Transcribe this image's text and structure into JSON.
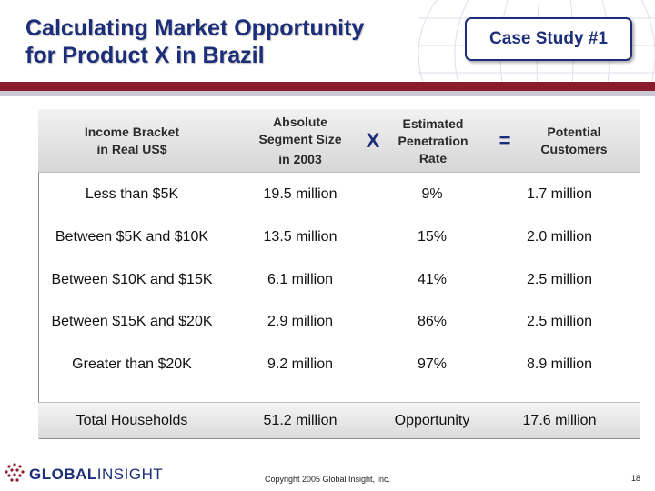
{
  "header": {
    "title_line1": "Calculating Market Opportunity",
    "title_line2": "for Product X in Brazil",
    "badge": "Case Study #1"
  },
  "table": {
    "columns": [
      {
        "line1": "Income Bracket",
        "line2": "in Real US$"
      },
      {
        "line1": "Absolute",
        "line2": "Segment Size",
        "line3": "in 2003"
      },
      {
        "line1": "Estimated",
        "line2": "Penetration",
        "line3": "Rate"
      },
      {
        "line1": "Potential",
        "line2": "Customers"
      }
    ],
    "operator_multiply": "X",
    "operator_equals": "=",
    "rows": [
      {
        "bracket": "Less than $5K",
        "segment": "19.5 million",
        "rate": "9%",
        "customers": "1.7 million"
      },
      {
        "bracket": "Between $5K and $10K",
        "segment": "13.5 million",
        "rate": "15%",
        "customers": "2.0 million"
      },
      {
        "bracket": "Between $10K and $15K",
        "segment": "6.1 million",
        "rate": "41%",
        "customers": "2.5 million"
      },
      {
        "bracket": "Between $15K and $20K",
        "segment": "2.9 million",
        "rate": "86%",
        "customers": "2.5 million"
      },
      {
        "bracket": "Greater than $20K",
        "segment": "9.2 million",
        "rate": "97%",
        "customers": "8.9 million"
      }
    ],
    "total": {
      "bracket": "Total Households",
      "segment": "51.2 million",
      "rate": "Opportunity",
      "customers": "17.6 million"
    }
  },
  "footer": {
    "logo_global": "GLOBAL",
    "logo_insight": "INSIGHT",
    "logo_icon": "globe-dots-icon",
    "copyright": "Copyright 2005 Global Insight, Inc.",
    "page_number": "18"
  },
  "colors": {
    "title": "#1c2e7a",
    "accent_bar": "#8b1c2c",
    "header_gradient_top": "#f2f2f2",
    "header_gradient_bottom": "#d6d6d6"
  }
}
